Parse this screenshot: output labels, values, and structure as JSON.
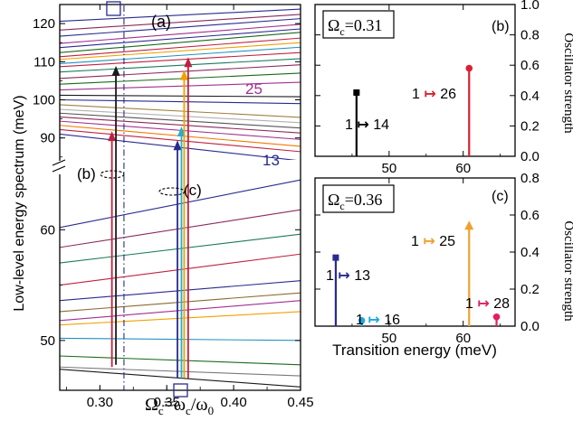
{
  "chart_data": [
    {
      "panel": "(a)",
      "type": "line",
      "xlabel": "Ωc=ωc/ω0",
      "ylabel": "Low-level energy spectrum (meV)",
      "xlim": [
        0.27,
        0.45
      ],
      "broken_y_axis": true,
      "ylim_lower": [
        45.5,
        65
      ],
      "ylim_upper": [
        84,
        125
      ],
      "xticks": [
        "0.30",
        "0.35",
        "0.40",
        "0.45"
      ],
      "yticks_lower": [
        "50",
        "60"
      ],
      "yticks_upper": [
        "90",
        "100",
        "110",
        "120"
      ],
      "annotations": {
        "level_25": "25",
        "level_13": "13",
        "inset_b": "(b)",
        "inset_c": "(c)"
      },
      "vertical_dashdot_line_x": 0.318,
      "marker_x": 0.36,
      "levels_lower": [
        {
          "y": [
            47.4,
            45.8
          ],
          "color": "#1a1a1a"
        },
        {
          "y": [
            47.6,
            46.8
          ],
          "color": "#7a7a7a"
        },
        {
          "y": [
            48.6,
            47.8
          ],
          "color": "#1a6a1a"
        },
        {
          "y": [
            50.2,
            50.0
          ],
          "color": "#2090c0"
        },
        {
          "y": [
            51.4,
            52.6
          ],
          "color": "#f0a000"
        },
        {
          "y": [
            51.8,
            53.6
          ],
          "color": "#a03090"
        },
        {
          "y": [
            52.6,
            54.3
          ],
          "color": "#8a6a30"
        },
        {
          "y": [
            53.6,
            55.4
          ],
          "color": "#2a2a90"
        },
        {
          "y": [
            55.0,
            57.8
          ],
          "color": "#c02040"
        },
        {
          "y": [
            57.0,
            59.6
          ],
          "color": "#1a7a5a"
        },
        {
          "y": [
            58.4,
            61.8
          ],
          "color": "#8a2a5a"
        },
        {
          "y": [
            60.2,
            64.5
          ],
          "color": "#2a2a90"
        }
      ],
      "levels_upper": [
        {
          "y": [
            91.0,
            84.0
          ],
          "color": "#2a2a90"
        },
        {
          "y": [
            92.2,
            86.4
          ],
          "color": "#c02040"
        },
        {
          "y": [
            93.3,
            87.8
          ],
          "color": "#f07800"
        },
        {
          "y": [
            94.4,
            89.6
          ],
          "color": "#a03090"
        },
        {
          "y": [
            95.5,
            91.3
          ],
          "color": "#8a2a5a"
        },
        {
          "y": [
            96.5,
            92.6
          ],
          "color": "#555555"
        },
        {
          "y": [
            97.5,
            94.0
          ],
          "color": "#b0b0b0"
        },
        {
          "y": [
            98.7,
            95.4
          ],
          "color": "#a08040"
        },
        {
          "y": [
            100.0,
            99.0
          ],
          "color": "#2a2a90"
        },
        {
          "y": [
            101.2,
            100.8
          ],
          "color": "#1a1a1a"
        },
        {
          "y": [
            102.6,
            104.6
          ],
          "color": "#a03090"
        },
        {
          "y": [
            104.1,
            107.0
          ],
          "color": "#1a6a1a"
        },
        {
          "y": [
            105.6,
            109.2
          ],
          "color": "#8a2a5a"
        },
        {
          "y": [
            107.3,
            110.8
          ],
          "color": "#1a7a5a"
        },
        {
          "y": [
            108.7,
            112.4
          ],
          "color": "#c02040"
        },
        {
          "y": [
            109.5,
            113.8
          ],
          "color": "#2090c0"
        },
        {
          "y": [
            110.6,
            115.0
          ],
          "color": "#f0a000"
        },
        {
          "y": [
            111.3,
            116.2
          ],
          "color": "#c02040"
        },
        {
          "y": [
            112.4,
            117.7
          ],
          "color": "#1a6a1a"
        },
        {
          "y": [
            113.7,
            118.6
          ],
          "color": "#2a2a90"
        },
        {
          "y": [
            114.8,
            119.8
          ],
          "color": "#a03090"
        },
        {
          "y": [
            116.7,
            121.3
          ],
          "color": "#2a2a90"
        },
        {
          "y": [
            118.3,
            122.4
          ],
          "color": "#8a2a5a"
        },
        {
          "y": [
            120.6,
            123.8
          ],
          "color": "#2a2a90"
        }
      ],
      "transition_arrows": [
        {
          "x": 0.309,
          "from": 47.6,
          "to": 91.8,
          "color": "#c02040"
        },
        {
          "x": 0.312,
          "from": 47.8,
          "to": 108.9,
          "color": "#1a1a1a"
        },
        {
          "x": 0.358,
          "from": 46.6,
          "to": 89.4,
          "color": "#2a2a90"
        },
        {
          "x": 0.361,
          "from": 46.6,
          "to": 93.0,
          "color": "#20b0d0"
        },
        {
          "x": 0.363,
          "from": 46.6,
          "to": 107.8,
          "color": "#f0a000"
        },
        {
          "x": 0.366,
          "from": 46.6,
          "to": 111.2,
          "color": "#c02040"
        }
      ]
    },
    {
      "panel": "(b)",
      "type": "bar",
      "label": "Ωc=0.31",
      "label_main": "Ω",
      "label_sub": "c",
      "label_val": "=0.31",
      "xlim": [
        40,
        67
      ],
      "ylim": [
        0,
        1.0
      ],
      "xticks": [
        "50",
        "60"
      ],
      "yticks": [
        "0.0",
        "0.2",
        "0.4",
        "0.6",
        "0.8",
        "1.0"
      ],
      "ylabel": "Oscillator strength",
      "stems": [
        {
          "x": 45.6,
          "y": 0.42,
          "color": "#000000",
          "marker": "square",
          "label_from": "1",
          "label_to": "14"
        },
        {
          "x": 60.8,
          "y": 0.58,
          "color": "#d82030",
          "marker": "circle",
          "label_from": "1",
          "label_to": "26"
        }
      ]
    },
    {
      "panel": "(c)",
      "type": "bar",
      "label": "Ωc=0.36",
      "label_main": "Ω",
      "label_sub": "c",
      "label_val": "=0.36",
      "xlabel": "Transition energy (meV)",
      "xlim": [
        40,
        67
      ],
      "ylim": [
        0,
        0.8
      ],
      "xticks": [
        "50",
        "60"
      ],
      "yticks": [
        "0.0",
        "0.2",
        "0.4",
        "0.6",
        "0.8"
      ],
      "ylabel": "Oscillator strength",
      "stems": [
        {
          "x": 42.8,
          "y": 0.37,
          "color": "#2a2a90",
          "marker": "square",
          "label_from": "1",
          "label_to": "13"
        },
        {
          "x": 46.3,
          "y": 0.03,
          "color": "#20a8e0",
          "marker": "circle",
          "label_from": "1",
          "label_to": "16"
        },
        {
          "x": 60.8,
          "y": 0.56,
          "color": "#f0a030",
          "marker": "triangle",
          "label_from": "1",
          "label_to": "25"
        },
        {
          "x": 64.5,
          "y": 0.05,
          "color": "#e0205a",
          "marker": "circle",
          "label_from": "1",
          "label_to": "28"
        }
      ]
    }
  ]
}
